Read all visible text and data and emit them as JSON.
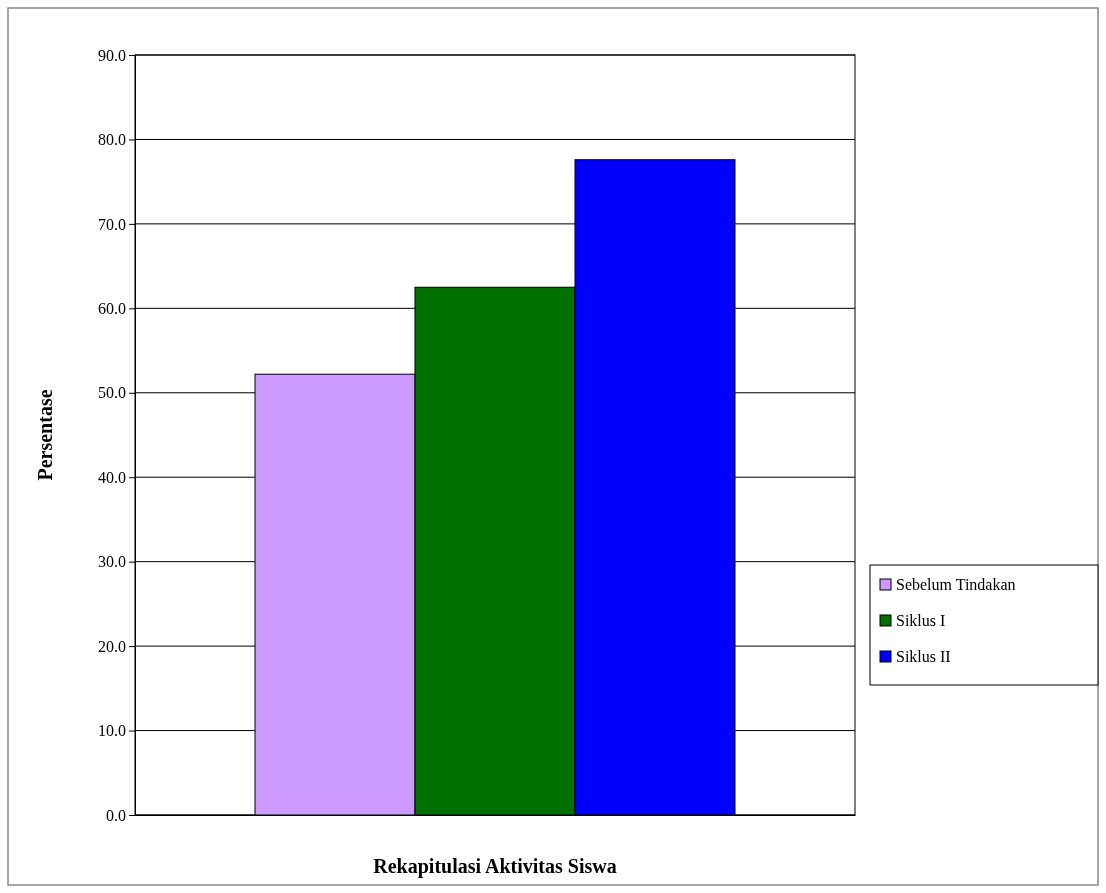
{
  "chart_data": {
    "type": "bar",
    "xlabel": "Rekapitulasi Aktivitas Siswa",
    "ylabel": "Persentase",
    "categories": [
      null
    ],
    "series": [
      {
        "name": "Sebelum Tindakan",
        "color": "#cc99ff",
        "values": [
          52.2
        ]
      },
      {
        "name": "Siklus I",
        "color": "#007000",
        "values": [
          62.5
        ]
      },
      {
        "name": "Siklus II",
        "color": "#0000ff",
        "values": [
          77.6
        ]
      }
    ],
    "ylim": [
      0,
      90
    ],
    "yticks": [
      {
        "value": 0,
        "label": "0.0"
      },
      {
        "value": 10,
        "label": "10.0"
      },
      {
        "value": 20,
        "label": "20.0"
      },
      {
        "value": 30,
        "label": "30.0"
      },
      {
        "value": 40,
        "label": "40.0"
      },
      {
        "value": 50,
        "label": "50.0"
      },
      {
        "value": 60,
        "label": "60.0"
      },
      {
        "value": 70,
        "label": "70.0"
      },
      {
        "value": 80,
        "label": "80.0"
      },
      {
        "value": 90,
        "label": "90.0"
      }
    ],
    "grid": "y",
    "legend": "right"
  }
}
